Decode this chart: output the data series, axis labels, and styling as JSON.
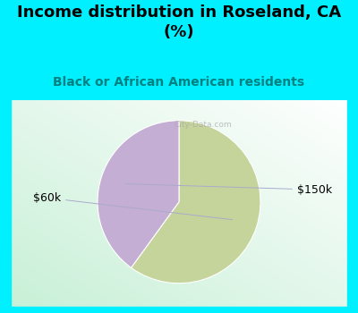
{
  "title": "Income distribution in Roseland, CA\n(%)",
  "subtitle": "Black or African American residents",
  "slices": [
    60,
    40
  ],
  "labels": [
    "$60k",
    "$150k"
  ],
  "colors": [
    "#c5d49a",
    "#c4aed4"
  ],
  "background_cyan": "#00f0ff",
  "title_fontsize": 13,
  "subtitle_fontsize": 10,
  "subtitle_color": "#008080",
  "label_fontsize": 9,
  "startangle": 90,
  "chart_bg": "#e8f5ee"
}
